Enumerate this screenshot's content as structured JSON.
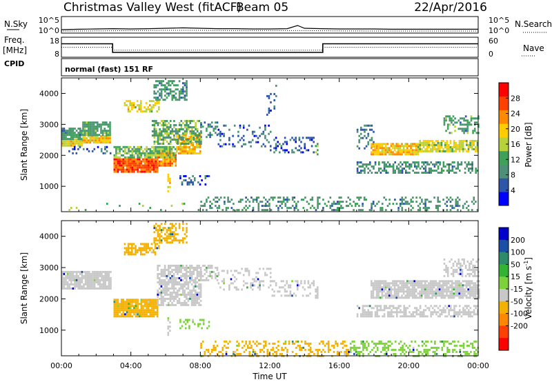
{
  "header": {
    "station": "Christmas Valley West (fitACF)",
    "beam": "Beam 05",
    "date": "22/Apr/2016"
  },
  "noise_panel": {
    "left_label": "N.Sky",
    "left_ticks": [
      "10^5",
      "10^0"
    ],
    "right_label": "N.Search",
    "right_ticks": [
      "10^5",
      "10^0"
    ]
  },
  "freq_panel": {
    "left_label_1": "Freq.",
    "left_label_2": "[MHz]",
    "left_ticks": [
      "18",
      "8"
    ],
    "right_label": "Nave",
    "right_ticks": [
      "60",
      "0"
    ]
  },
  "cpid_panel": {
    "label": "CPID",
    "text": "normal (fast) 151 RF"
  },
  "chart_data": [
    {
      "type": "line",
      "panel": "noise",
      "x_unit": "hours UT",
      "xlim": [
        0,
        24
      ],
      "scale": "log",
      "y_ticks": [
        "10^0",
        "10^5"
      ],
      "series": [
        {
          "name": "N.Sky",
          "style": "solid",
          "x": [
            0,
            1,
            2,
            3,
            4,
            5,
            6,
            7,
            8,
            9,
            10,
            11,
            12,
            13,
            13.6,
            14,
            15,
            16,
            17,
            18,
            19,
            20,
            21,
            22,
            23,
            24
          ],
          "y": [
            0.15,
            0.18,
            0.2,
            0.22,
            0.2,
            0.22,
            0.25,
            0.28,
            0.25,
            0.22,
            0.22,
            0.2,
            0.2,
            0.22,
            0.45,
            0.25,
            0.22,
            0.2,
            0.2,
            0.2,
            0.18,
            0.18,
            0.18,
            0.18,
            0.18,
            0.18
          ]
        },
        {
          "name": "N.Search",
          "style": "dotted",
          "x": [
            0,
            2,
            4,
            6,
            8,
            10,
            12,
            14,
            16,
            18,
            20,
            22,
            24
          ],
          "y": [
            0.05,
            0.06,
            0.08,
            0.1,
            0.1,
            0.08,
            0.08,
            0.08,
            0.06,
            0.05,
            0.05,
            0.05,
            0.05
          ]
        }
      ]
    },
    {
      "type": "line",
      "panel": "frequency",
      "x_unit": "hours UT",
      "xlim": [
        0,
        24
      ],
      "series": [
        {
          "name": "Freq.",
          "style": "solid",
          "unit": "MHz",
          "ylim": [
            8,
            18
          ],
          "x": [
            0,
            2.95,
            2.95,
            15.05,
            15.05,
            24
          ],
          "y": [
            15,
            15,
            10,
            10,
            15,
            15
          ]
        },
        {
          "name": "Nave",
          "style": "dotted",
          "ylim": [
            0,
            60
          ],
          "x": [
            0,
            2.95,
            2.95,
            15.05,
            15.05,
            24
          ],
          "y": [
            30,
            30,
            20,
            20,
            30,
            30
          ]
        }
      ]
    },
    {
      "type": "heatmap",
      "panel": "power",
      "xlabel": "",
      "ylabel": "Slant Range [km]",
      "xlim": [
        0,
        24
      ],
      "ylim": [
        180,
        4500
      ],
      "y_ticks": [
        1000,
        2000,
        3000,
        4000
      ],
      "colorbar": {
        "label": "Power [dB]",
        "vmin": 0,
        "vmax": 32,
        "ticks": [
          4,
          8,
          12,
          16,
          20,
          24,
          28
        ],
        "colors": [
          "#0000ff",
          "#2d56a8",
          "#4d8f78",
          "#3fa05a",
          "#b8d23c",
          "#ffcc00",
          "#ff8a00",
          "#ff4000",
          "#ff0000"
        ]
      },
      "regions": [
        {
          "t0": 0.0,
          "t1": 1.2,
          "r0": 2300,
          "r1": 2550,
          "v": 18,
          "d": 0.95
        },
        {
          "t0": 0.0,
          "t1": 1.2,
          "r0": 2550,
          "r1": 2900,
          "v": 10,
          "d": 0.85
        },
        {
          "t0": 1.2,
          "t1": 2.8,
          "r0": 2400,
          "r1": 2650,
          "v": 20,
          "d": 0.95
        },
        {
          "t0": 1.2,
          "t1": 2.8,
          "r0": 2650,
          "r1": 3100,
          "v": 11,
          "d": 0.85
        },
        {
          "t0": 0.3,
          "t1": 2.8,
          "r0": 2050,
          "r1": 2300,
          "v": 6,
          "d": 0.25
        },
        {
          "t0": 3.0,
          "t1": 5.5,
          "r0": 1450,
          "r1": 1900,
          "v": 26,
          "d": 0.95
        },
        {
          "t0": 5.5,
          "t1": 6.6,
          "r0": 1650,
          "r1": 2100,
          "v": 23,
          "d": 0.9
        },
        {
          "t0": 3.0,
          "t1": 6.6,
          "r0": 1900,
          "r1": 2300,
          "v": 14,
          "d": 0.7
        },
        {
          "t0": 6.6,
          "t1": 8.0,
          "r0": 2050,
          "r1": 2700,
          "v": 20,
          "d": 0.8
        },
        {
          "t0": 5.2,
          "t1": 8.0,
          "r0": 2350,
          "r1": 3150,
          "v": 12,
          "d": 0.6
        },
        {
          "t0": 3.6,
          "t1": 5.6,
          "r0": 3450,
          "r1": 3800,
          "v": 18,
          "d": 0.6
        },
        {
          "t0": 5.3,
          "t1": 7.2,
          "r0": 3800,
          "r1": 4450,
          "v": 10,
          "d": 0.5
        },
        {
          "t0": 6.1,
          "t1": 6.3,
          "r0": 800,
          "r1": 1400,
          "v": 20,
          "d": 0.5
        },
        {
          "t0": 6.8,
          "t1": 8.5,
          "r0": 1050,
          "r1": 1350,
          "v": 6,
          "d": 0.35
        },
        {
          "t0": 8.0,
          "t1": 9.0,
          "r0": 2600,
          "r1": 3100,
          "v": 8,
          "d": 0.4
        },
        {
          "t0": 9.0,
          "t1": 12.0,
          "r0": 2300,
          "r1": 3000,
          "v": 6,
          "d": 0.2
        },
        {
          "t0": 12.0,
          "t1": 14.5,
          "r0": 2100,
          "r1": 2600,
          "v": 6,
          "d": 0.3
        },
        {
          "t0": 11.8,
          "t1": 12.4,
          "r0": 3300,
          "r1": 4300,
          "v": 6,
          "d": 0.15
        },
        {
          "t0": 14.6,
          "t1": 14.8,
          "r0": 2000,
          "r1": 2400,
          "v": 14,
          "d": 0.5
        },
        {
          "t0": 17.0,
          "t1": 18.0,
          "r0": 2200,
          "r1": 3000,
          "v": 8,
          "d": 0.3
        },
        {
          "t0": 17.8,
          "t1": 20.5,
          "r0": 2000,
          "r1": 2400,
          "v": 20,
          "d": 0.8
        },
        {
          "t0": 20.5,
          "t1": 24.0,
          "r0": 2100,
          "r1": 2500,
          "v": 17,
          "d": 0.75
        },
        {
          "t0": 17.0,
          "t1": 24.0,
          "r0": 1400,
          "r1": 1800,
          "v": 10,
          "d": 0.5
        },
        {
          "t0": 22.0,
          "t1": 24.0,
          "r0": 2700,
          "r1": 3300,
          "v": 11,
          "d": 0.45
        },
        {
          "t0": 8.0,
          "t1": 24.0,
          "r0": 180,
          "r1": 650,
          "v": 10,
          "d": 0.3
        },
        {
          "t0": 0.0,
          "t1": 8.0,
          "r0": 180,
          "r1": 450,
          "v": 14,
          "d": 0.05
        }
      ]
    },
    {
      "type": "heatmap",
      "panel": "velocity",
      "xlabel": "Time UT",
      "ylabel": "Slant Range [km]",
      "xlim": [
        0,
        24
      ],
      "ylim": [
        180,
        4500
      ],
      "y_ticks": [
        1000,
        2000,
        3000,
        4000
      ],
      "x_ticks": [
        "00:00",
        "04:00",
        "08:00",
        "12:00",
        "16:00",
        "20:00",
        "00:00"
      ],
      "colorbar": {
        "label": "Velocity [m s^-1]",
        "ticks": [
          200,
          100,
          50,
          15,
          -15,
          -50,
          -100,
          -200
        ],
        "bands": [
          "#0000cc",
          "#1b4fa5",
          "#2e8a6a",
          "#33b233",
          "#7dd13a",
          "#c8c8c8",
          "#f5b100",
          "#ff8800",
          "#ff4000",
          "#ff0000"
        ]
      },
      "regions": [
        {
          "t0": 0.0,
          "t1": 2.8,
          "r0": 2300,
          "r1": 2900,
          "v": 0,
          "d": 0.9
        },
        {
          "t0": 3.0,
          "t1": 5.5,
          "r0": 1450,
          "r1": 2000,
          "v": -30,
          "d": 0.9
        },
        {
          "t0": 5.5,
          "t1": 8.0,
          "r0": 1800,
          "r1": 3100,
          "v": 0,
          "d": 0.7
        },
        {
          "t0": 3.6,
          "t1": 5.6,
          "r0": 3450,
          "r1": 3800,
          "v": -30,
          "d": 0.6
        },
        {
          "t0": 5.3,
          "t1": 7.2,
          "r0": 3800,
          "r1": 4450,
          "v": -30,
          "d": 0.5
        },
        {
          "t0": 6.1,
          "t1": 6.3,
          "r0": 800,
          "r1": 1400,
          "v": 0,
          "d": 0.5
        },
        {
          "t0": 6.8,
          "t1": 8.5,
          "r0": 1050,
          "r1": 1350,
          "v": 30,
          "d": 0.35
        },
        {
          "t0": 8.0,
          "t1": 9.0,
          "r0": 2600,
          "r1": 3100,
          "v": 0,
          "d": 0.5
        },
        {
          "t0": 9.0,
          "t1": 12.0,
          "r0": 2300,
          "r1": 3000,
          "v": 0,
          "d": 0.25
        },
        {
          "t0": 12.0,
          "t1": 14.5,
          "r0": 2100,
          "r1": 2600,
          "v": 0,
          "d": 0.3
        },
        {
          "t0": 14.6,
          "t1": 14.8,
          "r0": 2000,
          "r1": 2400,
          "v": 0,
          "d": 0.5
        },
        {
          "t0": 17.8,
          "t1": 24.0,
          "r0": 2000,
          "r1": 2600,
          "v": 0,
          "d": 0.85
        },
        {
          "t0": 17.0,
          "t1": 24.0,
          "r0": 1400,
          "r1": 1800,
          "v": 0,
          "d": 0.6
        },
        {
          "t0": 22.0,
          "t1": 24.0,
          "r0": 2700,
          "r1": 3300,
          "v": 0,
          "d": 0.5
        },
        {
          "t0": 8.0,
          "t1": 16.5,
          "r0": 180,
          "r1": 650,
          "v": -30,
          "d": 0.35
        },
        {
          "t0": 16.5,
          "t1": 24.0,
          "r0": 180,
          "r1": 650,
          "v": 30,
          "d": 0.35
        }
      ]
    }
  ]
}
